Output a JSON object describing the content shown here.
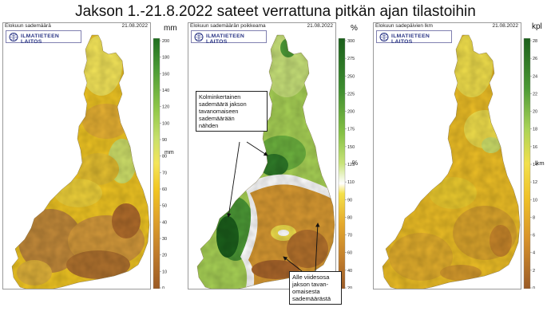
{
  "title": "Jakson 1.-21.8.2022 sateet verrattuna pitkän ajan tilastoihin",
  "logo_text": "ILMATIETEEN LAITOS",
  "colors": {
    "dark_green": "#1f6e1f",
    "green": "#6db33f",
    "light_green": "#bcdc5a",
    "yellow": "#f2d21b",
    "orange": "#dd9a25",
    "brown": "#a9652a"
  },
  "panels": [
    {
      "label": "Elokuun sademäärä",
      "date": "21.08.2022",
      "unit": "mm",
      "unit2": "mm",
      "ticks": [
        "200",
        "180",
        "160",
        "140",
        "120",
        "100",
        "90",
        "80",
        "70",
        "60",
        "50",
        "40",
        "30",
        "20",
        "10",
        "0"
      ]
    },
    {
      "label": "Elokuun sademäärän poikkeama",
      "date": "21.08.2022",
      "unit": "%",
      "unit2": "%",
      "ticks": [
        "300",
        "275",
        "250",
        "225",
        "200",
        "175",
        "150",
        "125",
        "110",
        "90",
        "80",
        "70",
        "60",
        "40",
        "20"
      ]
    },
    {
      "label": "Elokuun sadepäivien lkm",
      "date": "21.08.2022",
      "unit": "kpl",
      "unit2": "lkm",
      "ticks": [
        "28",
        "26",
        "24",
        "22",
        "20",
        "18",
        "16",
        "14",
        "12",
        "10",
        "8",
        "6",
        "4",
        "2",
        "0"
      ]
    }
  ],
  "annotations": {
    "top": [
      "Kolminkertainen",
      "sademäärä jakson",
      "tavanomaiseen",
      "sademäärään",
      "nähden"
    ],
    "bottom": [
      "Alle viidesosa",
      "jakson tavan-",
      "omaisesta",
      "sademäärästä"
    ]
  }
}
